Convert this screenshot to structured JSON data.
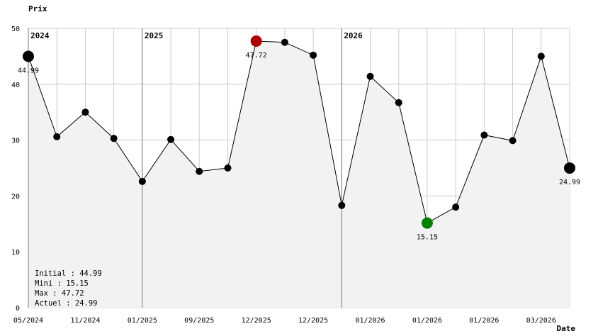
{
  "chart_data": {
    "type": "line",
    "ylabel": "Prix",
    "xlabel": "Date",
    "ylim": [
      0,
      50
    ],
    "y_ticks": [
      0,
      10,
      20,
      30,
      40,
      50
    ],
    "x_tick_labels": [
      "05/2024",
      "11/2024",
      "01/2025",
      "09/2025",
      "12/2025",
      "12/2025",
      "01/2026",
      "01/2026",
      "01/2026",
      "03/2026"
    ],
    "year_markers": [
      {
        "label": "2024",
        "index": 0
      },
      {
        "label": "2025",
        "index": 4
      },
      {
        "label": "2026",
        "index": 11
      }
    ],
    "grid": true,
    "area_fill": true,
    "series": [
      {
        "values": [
          44.99,
          30.6,
          35.0,
          30.3,
          22.6,
          30.1,
          24.4,
          25.0,
          47.72,
          47.5,
          45.2,
          18.3,
          41.4,
          36.7,
          15.15,
          18.0,
          30.9,
          29.9,
          45.0,
          24.99
        ]
      }
    ],
    "highlights": {
      "initial": {
        "index": 0,
        "label": "44.99"
      },
      "max": {
        "index": 8,
        "label": "47.72"
      },
      "min": {
        "index": 14,
        "label": "15.15"
      },
      "current": {
        "index": 19,
        "label": "24.99"
      }
    },
    "stats": {
      "initial": "Initial : 44.99",
      "min": "Mini : 15.15",
      "max": "Max : 47.72",
      "current": "Actuel : 24.99"
    },
    "colors": {
      "line": "#000000",
      "area": "#f2f2f2",
      "grid": "#cccccc",
      "min": "#008000",
      "max": "#aa0000",
      "point": "#000000"
    }
  }
}
